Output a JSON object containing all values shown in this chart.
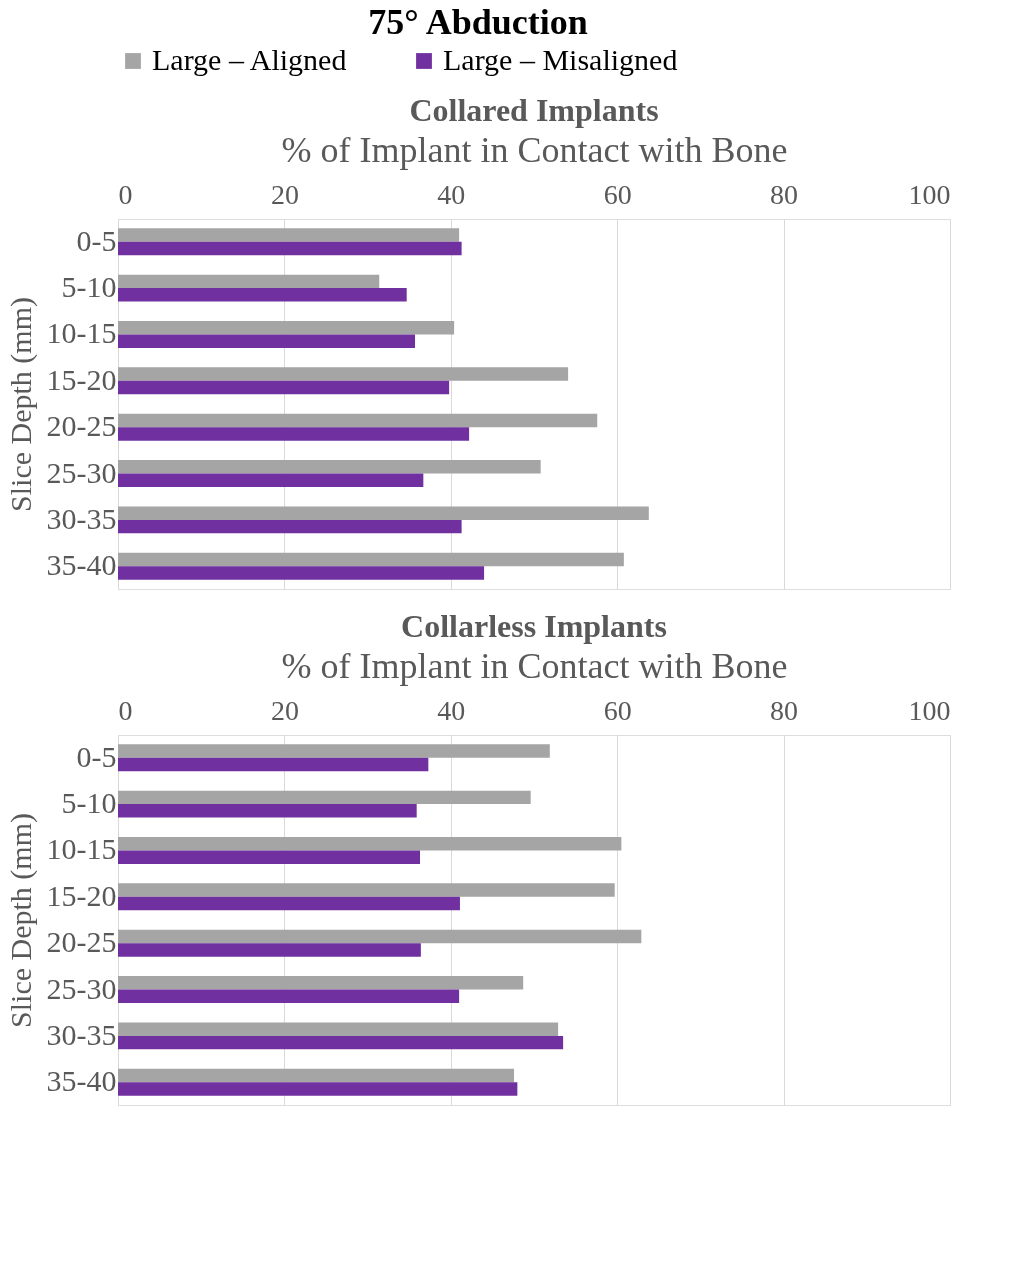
{
  "chart_data": [
    {
      "type": "bar",
      "orientation": "horizontal",
      "title": "75° Abduction",
      "subtitle": "Collared Implants",
      "xlabel": "% of Implant in Contact with Bone",
      "ylabel": "Slice Depth (mm)",
      "categories": [
        "0-5",
        "5-10",
        "10-15",
        "15-20",
        "20-25",
        "25-30",
        "30-35",
        "35-40"
      ],
      "series": [
        {
          "name": "Large – Aligned",
          "color": "#a5a5a5",
          "values": [
            41.0,
            31.4,
            40.4,
            54.1,
            57.6,
            50.8,
            63.8,
            60.8
          ]
        },
        {
          "name": "Large – Misaligned",
          "color": "#7030a0",
          "values": [
            41.3,
            34.7,
            35.7,
            39.8,
            42.2,
            36.7,
            41.3,
            44.0
          ]
        }
      ],
      "xlim": [
        0,
        100
      ],
      "xticks": [
        0,
        20,
        40,
        60,
        80,
        100
      ],
      "grid": "x",
      "legend": "top"
    },
    {
      "type": "bar",
      "orientation": "horizontal",
      "title": "Collarless Implants",
      "xlabel": "% of Implant in Contact with Bone",
      "ylabel": "Slice Depth (mm)",
      "categories": [
        "0-5",
        "5-10",
        "10-15",
        "15-20",
        "20-25",
        "25-30",
        "30-35",
        "35-40"
      ],
      "series": [
        {
          "name": "Large – Aligned",
          "color": "#a5a5a5",
          "values": [
            51.9,
            49.6,
            60.5,
            59.7,
            62.9,
            48.7,
            52.9,
            47.6
          ]
        },
        {
          "name": "Large – Misaligned",
          "color": "#7030a0",
          "values": [
            37.3,
            35.9,
            36.3,
            41.1,
            36.4,
            41.0,
            53.5,
            48.0
          ]
        }
      ],
      "xlim": [
        0,
        100
      ],
      "xticks": [
        0,
        20,
        40,
        60,
        80,
        100
      ],
      "grid": "x",
      "legend": false
    }
  ]
}
